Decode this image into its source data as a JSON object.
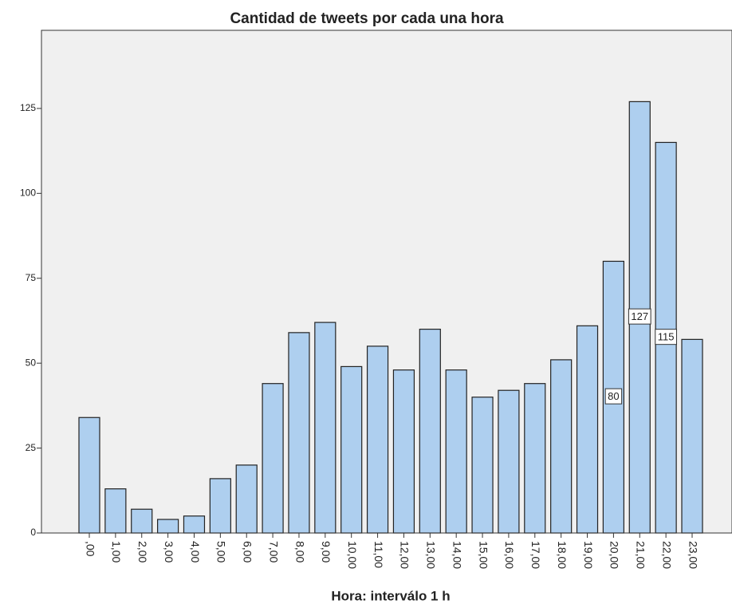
{
  "chart_data": {
    "type": "bar",
    "title": "Cantidad de tweets por cada una hora",
    "x_label": "Hora: interválo 1 h",
    "categories": [
      ",00",
      "1,00",
      "2,00",
      "3,00",
      "4,00",
      "5,00",
      "6,00",
      "7,00",
      "8,00",
      "9,00",
      "10,00",
      "11,00",
      "12,00",
      "13,00",
      "14,00",
      "15,00",
      "16,00",
      "17,00",
      "18,00",
      "19,00",
      "20,00",
      "21,00",
      "22,00",
      "23,00"
    ],
    "values": [
      34,
      13,
      7,
      4,
      5,
      16,
      20,
      44,
      59,
      62,
      49,
      55,
      48,
      60,
      48,
      40,
      42,
      44,
      51,
      61,
      80,
      127,
      115,
      57
    ],
    "value_labels": [
      null,
      null,
      null,
      null,
      null,
      null,
      null,
      null,
      null,
      null,
      null,
      null,
      null,
      null,
      null,
      null,
      null,
      null,
      null,
      null,
      "80",
      "127",
      "115",
      null
    ],
    "color": "#aecfef",
    "ylim": [
      0,
      148
    ],
    "yticks": [
      0,
      25,
      50,
      75,
      100,
      125
    ]
  }
}
